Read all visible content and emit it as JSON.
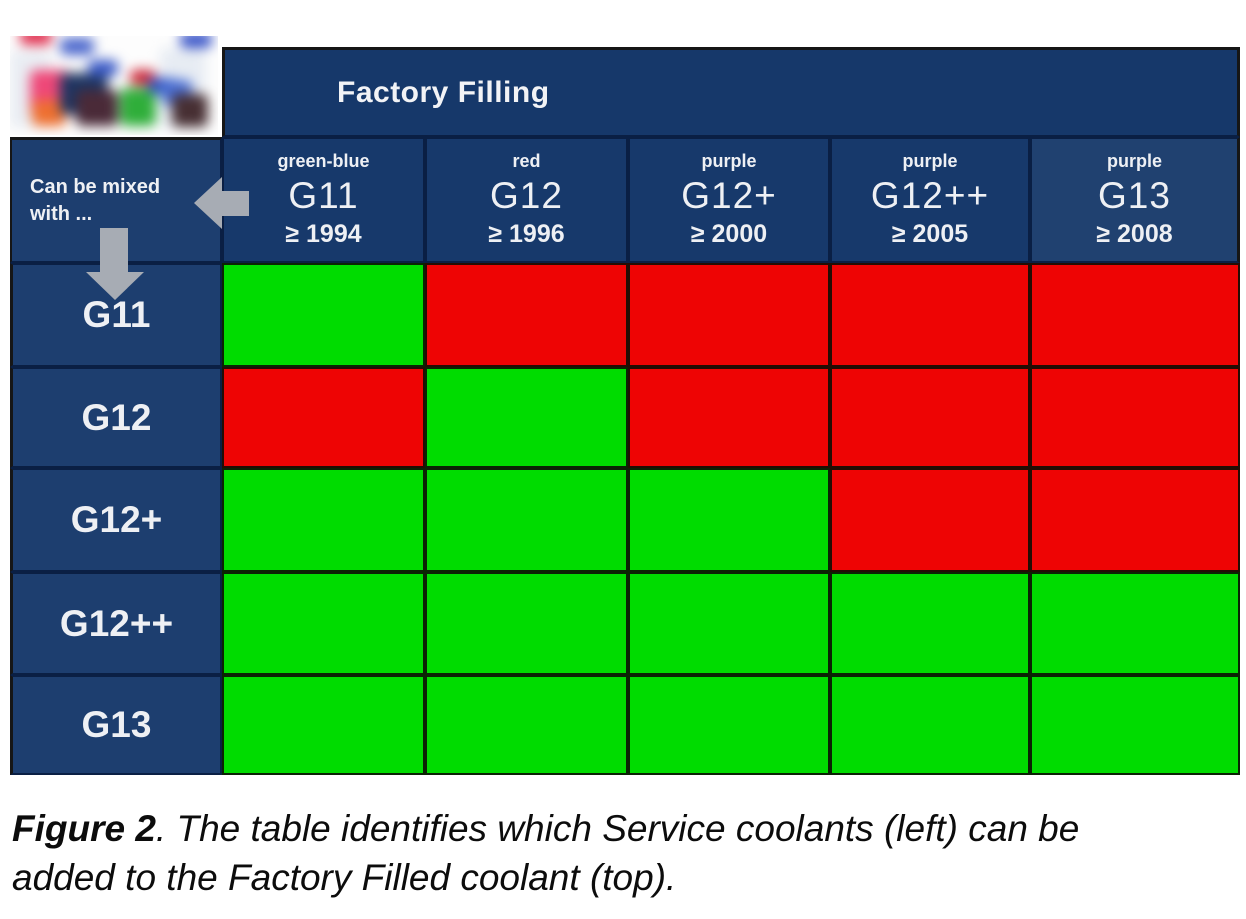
{
  "chart_data": {
    "type": "table",
    "title": "Factory Filling",
    "corner_label_lines": [
      "Can be mixed",
      "with ..."
    ],
    "columns": [
      {
        "color_word": "green-blue",
        "name": "G11",
        "min_year": "≥ 1994"
      },
      {
        "color_word": "red",
        "name": "G12",
        "min_year": "≥ 1996"
      },
      {
        "color_word": "purple",
        "name": "G12+",
        "min_year": "≥ 2000"
      },
      {
        "color_word": "purple",
        "name": "G12++",
        "min_year": "≥ 2005"
      },
      {
        "color_word": "purple",
        "name": "G13",
        "min_year": "≥ 2008"
      }
    ],
    "row_labels": [
      "G11",
      "G12",
      "G12+",
      "G12++",
      "G13"
    ],
    "matrix": [
      [
        "yes",
        "no",
        "no",
        "no",
        "no"
      ],
      [
        "no",
        "yes",
        "no",
        "no",
        "no"
      ],
      [
        "yes",
        "yes",
        "yes",
        "no",
        "no"
      ],
      [
        "yes",
        "yes",
        "yes",
        "yes",
        "yes"
      ],
      [
        "yes",
        "yes",
        "yes",
        "yes",
        "yes"
      ]
    ],
    "cell_colors": {
      "yes": "#00dc00",
      "no": "#ee0404"
    },
    "layout": {
      "header_navy": "#16386a",
      "label_navy": "#1d3e6f",
      "arrow_gray": "#a7acb4"
    }
  },
  "caption": {
    "label": "Figure 2",
    "line1_rest": ". The table identifies which Service coolants (left) can be",
    "line2": "added to the Factory Filled coolant (top)."
  }
}
